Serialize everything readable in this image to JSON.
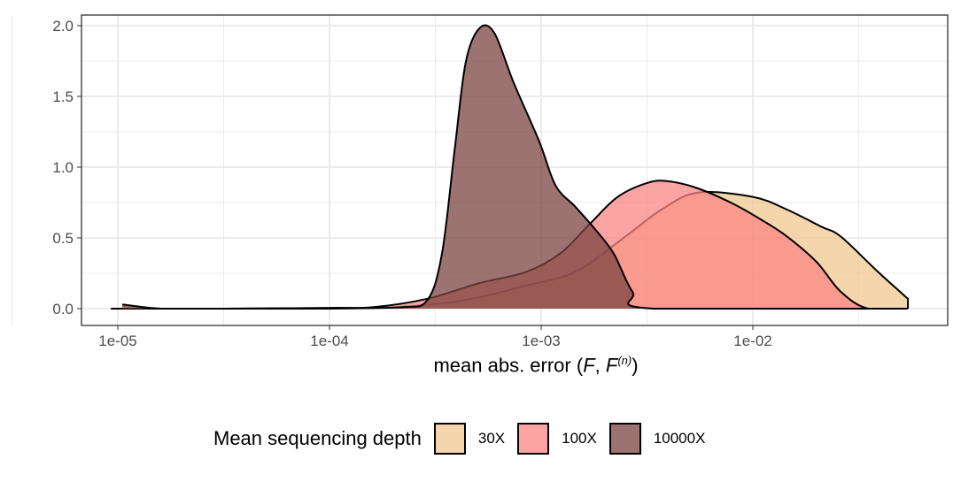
{
  "chart_data": {
    "type": "area",
    "subtype": "density",
    "xlabel": "mean abs. error (F, F^(n))",
    "xlabel_parts": {
      "text": "mean abs. error (",
      "f1": "F",
      "sep": ", ",
      "f2": "F",
      "sup": "(n)",
      "close": ")"
    },
    "ylabel": "",
    "x_scale": "log10",
    "xlim": [
      1e-05,
      0.06
    ],
    "ylim": [
      0,
      2.0
    ],
    "x_ticks": [
      "1e-05",
      "1e-04",
      "1e-03",
      "1e-02"
    ],
    "y_ticks": [
      "0.0",
      "0.5",
      "1.0",
      "1.5",
      "2.0"
    ],
    "grid": true,
    "legend": {
      "title": "Mean sequencing depth",
      "position": "bottom"
    },
    "series": [
      {
        "name": "30X",
        "color": "#F5D5AC",
        "x": [
          1.05e-05,
          1e-05,
          3e-05,
          0.0001,
          0.0002,
          0.00035,
          0.00051,
          0.00083,
          0.00145,
          0.0025,
          0.0037,
          0.0055,
          0.01,
          0.0145,
          0.021,
          0.026,
          0.039,
          0.054
        ],
        "y": [
          0.0,
          0.0,
          0.0,
          0.0,
          0.01,
          0.04,
          0.08,
          0.16,
          0.26,
          0.51,
          0.7,
          0.82,
          0.79,
          0.7,
          0.58,
          0.51,
          0.26,
          0.07
        ]
      },
      {
        "name": "100X",
        "color": "#FCA3A3",
        "x": [
          1.05e-05,
          3e-05,
          0.0001,
          0.00016,
          0.00029,
          0.00051,
          0.00085,
          0.00123,
          0.0017,
          0.0023,
          0.0032,
          0.004,
          0.0055,
          0.0081,
          0.0112,
          0.0145,
          0.02,
          0.026,
          0.035,
          0.054
        ],
        "y": [
          0.0,
          0.0,
          0.005,
          0.01,
          0.07,
          0.18,
          0.26,
          0.39,
          0.6,
          0.79,
          0.89,
          0.9,
          0.85,
          0.74,
          0.62,
          0.51,
          0.33,
          0.12,
          0.0,
          0.0
        ]
      },
      {
        "name": "10000X",
        "color": "#9C7370",
        "x": [
          1.05e-05,
          1.6e-05,
          3e-05,
          0.0001,
          0.00022,
          0.00029,
          0.00034,
          0.00039,
          0.00044,
          0.00051,
          0.0006,
          0.00074,
          0.00098,
          0.00117,
          0.00145,
          0.0018,
          0.0022,
          0.0027,
          0.0034,
          0.054
        ],
        "y": [
          0.03,
          0.0,
          0.0,
          0.005,
          0.01,
          0.06,
          0.39,
          1.12,
          1.74,
          1.98,
          1.95,
          1.6,
          1.18,
          0.87,
          0.72,
          0.56,
          0.39,
          0.12,
          0.0,
          0.0
        ]
      }
    ]
  }
}
